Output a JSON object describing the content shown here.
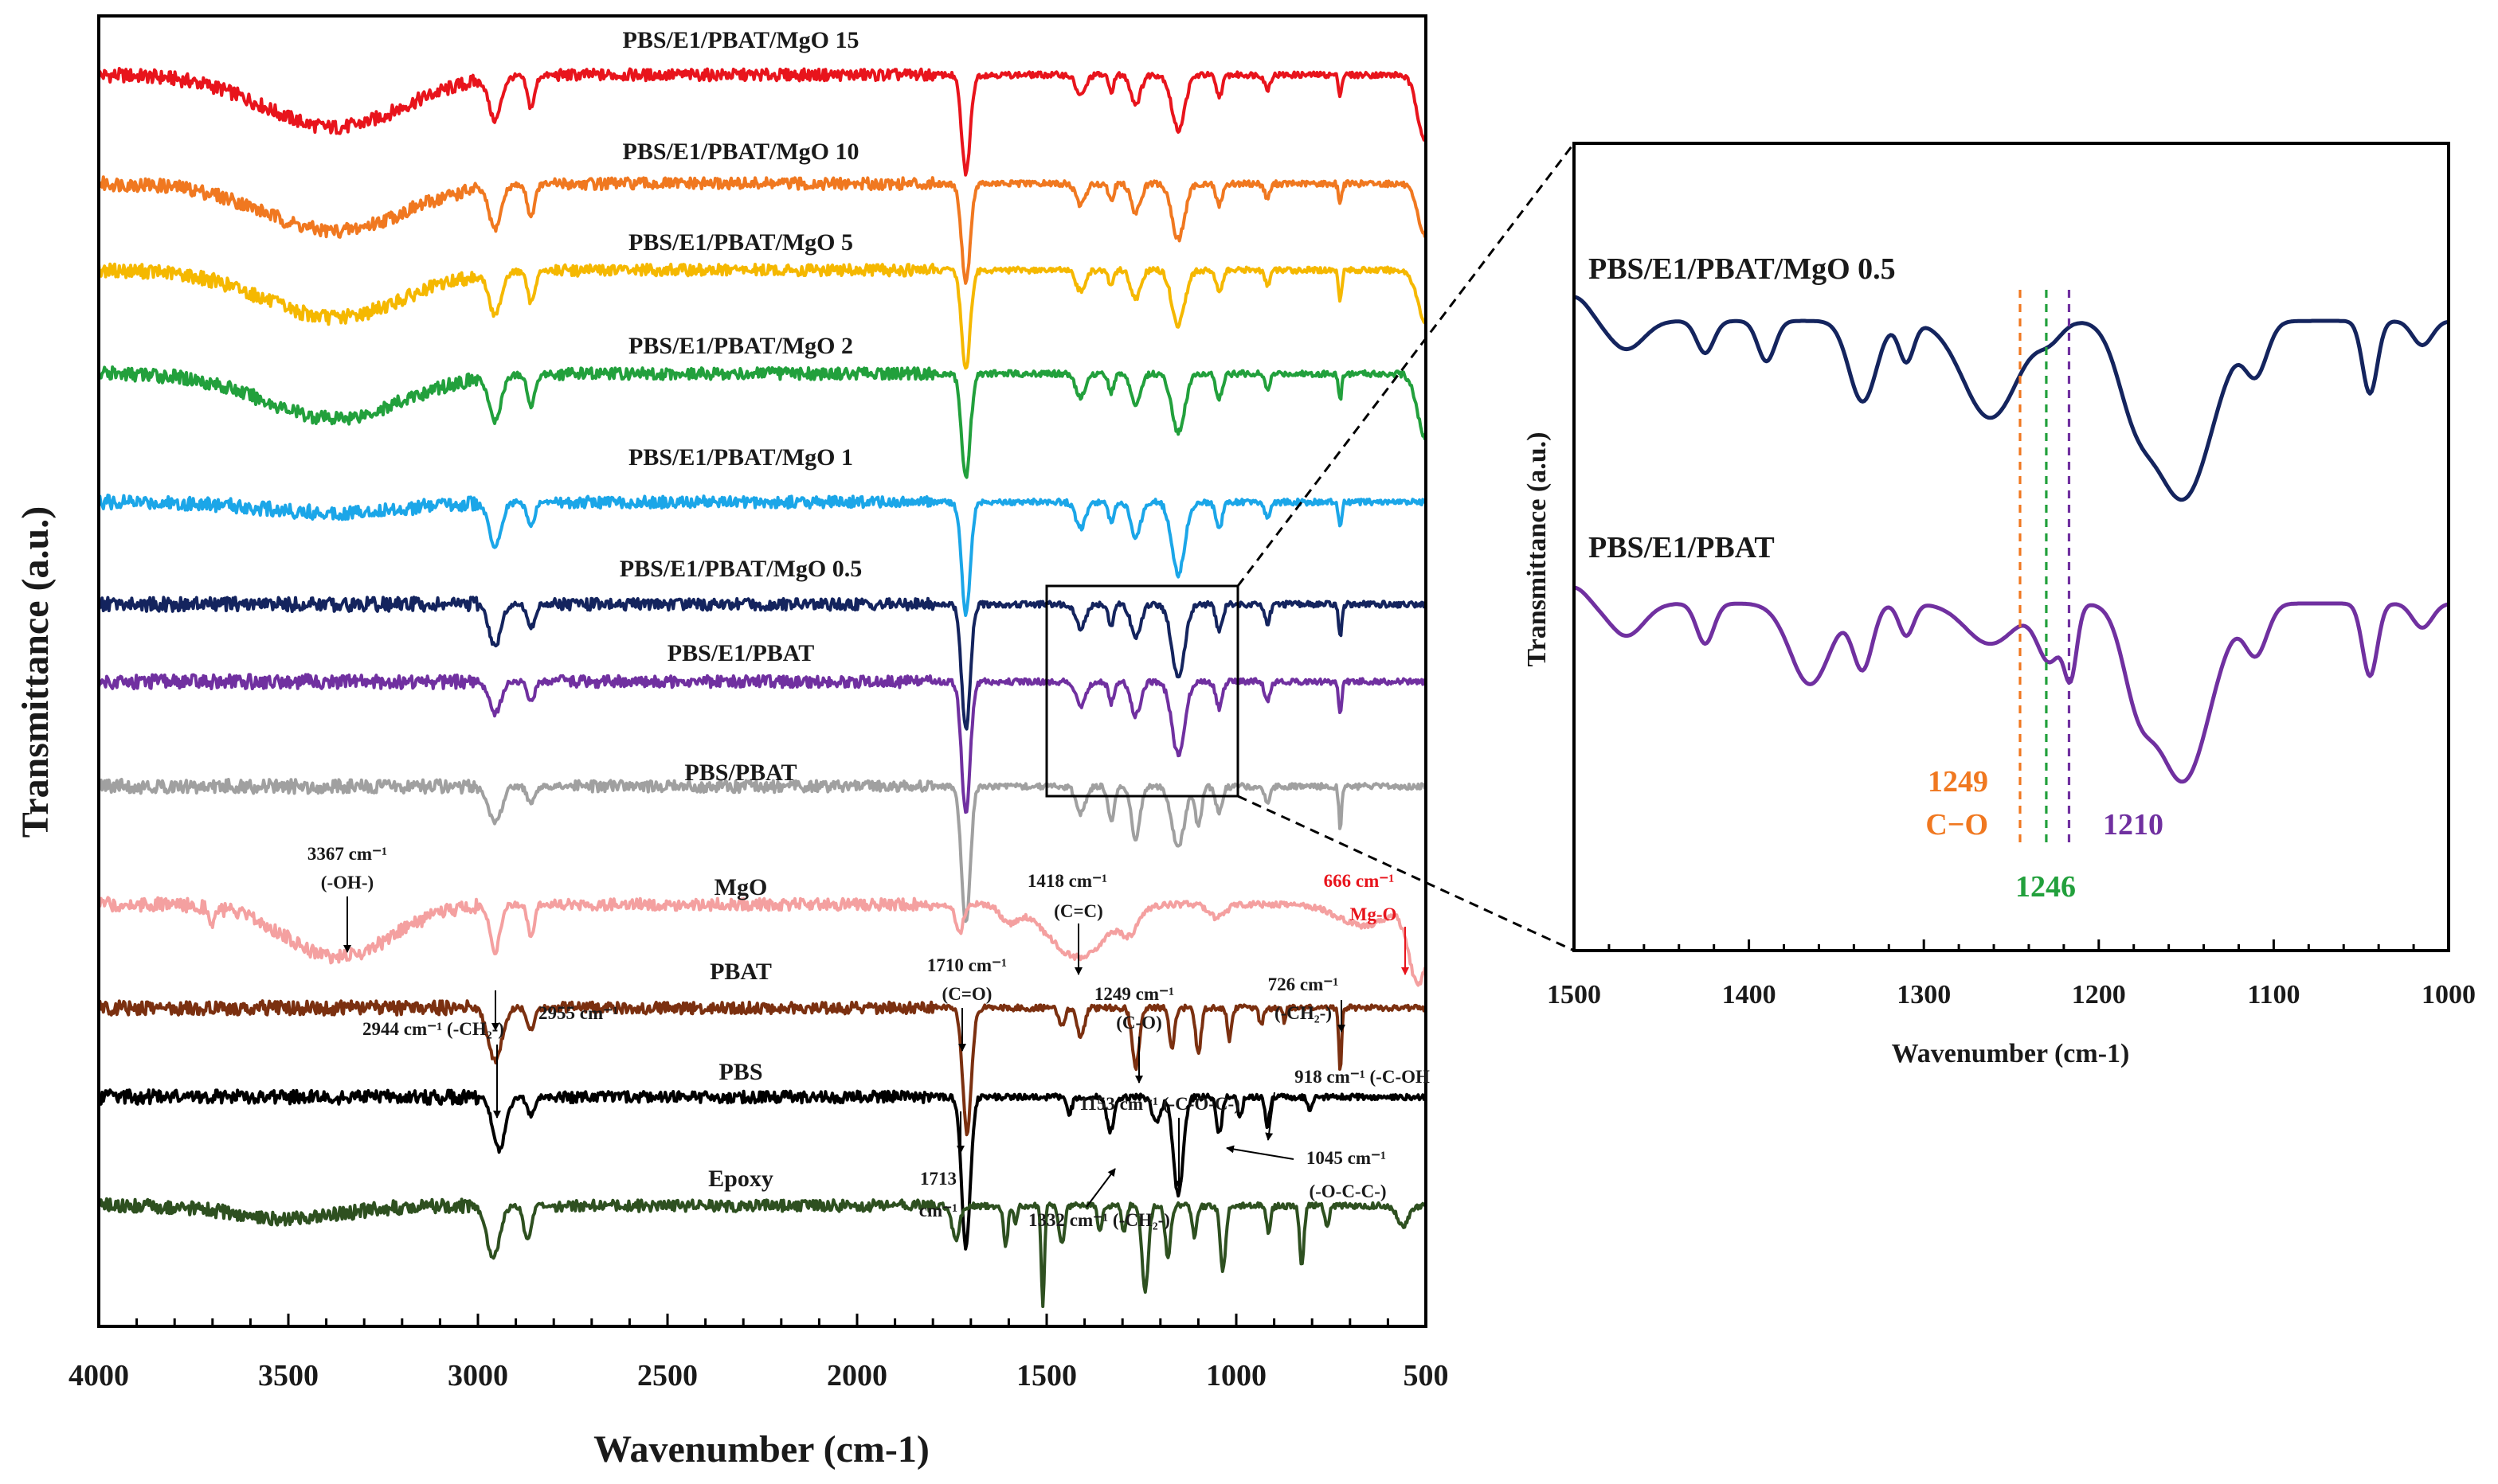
{
  "chart_data": [
    {
      "type": "line",
      "xlabel": "Wavenumber (cm-1)",
      "ylabel": "Transmittance (a.u.)",
      "xlim": [
        4000,
        500
      ],
      "ylim": [
        0,
        100
      ],
      "x_ticks": [
        "4000",
        "3500",
        "3000",
        "2500",
        "2000",
        "1500",
        "1000",
        "500"
      ],
      "grid": false,
      "legend": "none (labels above each curve)",
      "series": [
        {
          "name": "PBS/E1/PBAT/MgO 15",
          "color": "#e8141c",
          "baseline": 95.5,
          "peaks": [
            [
              3380,
              4,
              260
            ],
            [
              2955,
              3.2,
              22
            ],
            [
              2860,
              2.4,
              14
            ],
            [
              1713,
              7.5,
              16
            ],
            [
              1410,
              1.6,
              18
            ],
            [
              1330,
              1.2,
              10
            ],
            [
              1265,
              2.2,
              18
            ],
            [
              1153,
              4.2,
              24
            ],
            [
              1045,
              1.6,
              12
            ],
            [
              918,
              1.1,
              10
            ],
            [
              726,
              1.5,
              6
            ],
            [
              500,
              5,
              30
            ]
          ]
        },
        {
          "name": "PBS/E1/PBAT/MgO 10",
          "color": "#f07820",
          "baseline": 87.2,
          "peaks": [
            [
              3380,
              3.6,
              260
            ],
            [
              2955,
              3.2,
              22
            ],
            [
              2860,
              2.4,
              14
            ],
            [
              1713,
              7.5,
              16
            ],
            [
              1410,
              1.6,
              18
            ],
            [
              1330,
              1.2,
              10
            ],
            [
              1265,
              2.2,
              18
            ],
            [
              1153,
              4.2,
              24
            ],
            [
              1045,
              1.6,
              12
            ],
            [
              918,
              1.1,
              10
            ],
            [
              726,
              1.5,
              6
            ],
            [
              500,
              4,
              30
            ]
          ]
        },
        {
          "name": "PBS/E1/PBAT/MgO 5",
          "color": "#f5b800",
          "baseline": 80.6,
          "peaks": [
            [
              3380,
              3.6,
              260
            ],
            [
              2955,
              3.2,
              22
            ],
            [
              2860,
              2.4,
              14
            ],
            [
              1713,
              7.5,
              16
            ],
            [
              1410,
              1.6,
              18
            ],
            [
              1330,
              1.2,
              10
            ],
            [
              1265,
              2.2,
              18
            ],
            [
              1153,
              4.2,
              24
            ],
            [
              1045,
              1.6,
              12
            ],
            [
              918,
              1.1,
              10
            ],
            [
              726,
              2.2,
              6
            ],
            [
              500,
              4,
              30
            ]
          ]
        },
        {
          "name": "PBS/E1/PBAT/MgO 2",
          "color": "#22a03c",
          "baseline": 72.7,
          "peaks": [
            [
              3380,
              3.4,
              260
            ],
            [
              2955,
              3.4,
              22
            ],
            [
              2860,
              2.4,
              14
            ],
            [
              1713,
              8,
              16
            ],
            [
              1410,
              1.8,
              18
            ],
            [
              1330,
              1.4,
              10
            ],
            [
              1265,
              2.4,
              18
            ],
            [
              1153,
              4.5,
              24
            ],
            [
              1045,
              1.8,
              12
            ],
            [
              918,
              1.2,
              10
            ],
            [
              726,
              2,
              6
            ],
            [
              500,
              5,
              30
            ]
          ]
        },
        {
          "name": "PBS/E1/PBAT/MgO 1",
          "color": "#1ba6e8",
          "baseline": 62.9,
          "peaks": [
            [
              3380,
              0.8,
              260
            ],
            [
              2955,
              3.4,
              22
            ],
            [
              2860,
              1.8,
              14
            ],
            [
              1713,
              8.5,
              16
            ],
            [
              1410,
              2,
              18
            ],
            [
              1330,
              1.5,
              10
            ],
            [
              1265,
              2.8,
              18
            ],
            [
              1153,
              5.5,
              24
            ],
            [
              1045,
              2,
              12
            ],
            [
              918,
              1.2,
              10
            ],
            [
              726,
              2,
              6
            ]
          ]
        },
        {
          "name": "PBS/E1/PBAT/MgO 0.5",
          "color": "#14245e",
          "baseline": 55.1,
          "peaks": [
            [
              2955,
              3.2,
              22
            ],
            [
              2860,
              1.8,
              14
            ],
            [
              1713,
              9.5,
              16
            ],
            [
              1410,
              1.8,
              18
            ],
            [
              1330,
              1.6,
              10
            ],
            [
              1265,
              2.6,
              18
            ],
            [
              1153,
              5.5,
              24
            ],
            [
              1045,
              2,
              12
            ],
            [
              918,
              1.4,
              10
            ],
            [
              726,
              2.5,
              6
            ]
          ]
        },
        {
          "name": "PBS/E1/PBAT",
          "color": "#7030a0",
          "baseline": 49.2,
          "peaks": [
            [
              2955,
              2.4,
              22
            ],
            [
              2860,
              1.4,
              14
            ],
            [
              1713,
              10,
              16
            ],
            [
              1410,
              1.8,
              18
            ],
            [
              1330,
              1.6,
              10
            ],
            [
              1265,
              2.6,
              18
            ],
            [
              1153,
              5.5,
              24
            ],
            [
              1045,
              2,
              12
            ],
            [
              918,
              1.4,
              10
            ],
            [
              726,
              2.4,
              6
            ]
          ]
        },
        {
          "name": "PBS/PBAT",
          "color": "#a0a0a0",
          "baseline": 41.2,
          "peaks": [
            [
              2955,
              2.8,
              24
            ],
            [
              2860,
              1.4,
              14
            ],
            [
              1713,
              10.5,
              16
            ],
            [
              1410,
              2,
              18
            ],
            [
              1330,
              2.6,
              12
            ],
            [
              1265,
              4,
              16
            ],
            [
              1153,
              4.5,
              24
            ],
            [
              1100,
              3,
              12
            ],
            [
              1045,
              2,
              12
            ],
            [
              918,
              1.2,
              10
            ],
            [
              726,
              3.2,
              5
            ]
          ]
        },
        {
          "name": "MgO",
          "color": "#f4a0a0",
          "baseline": 32.2,
          "peaks": [
            [
              3700,
              1.5,
              8
            ],
            [
              3367,
              4,
              200
            ],
            [
              2955,
              3.6,
              18
            ],
            [
              2860,
              2.6,
              12
            ],
            [
              1730,
              2.2,
              14
            ],
            [
              1600,
              1.2,
              30
            ],
            [
              1418,
              4,
              110
            ],
            [
              1280,
              1.6,
              30
            ],
            [
              1050,
              1,
              30
            ],
            [
              666,
              1.6,
              90
            ],
            [
              520,
              6,
              35
            ]
          ]
        },
        {
          "name": "PBAT",
          "color": "#7b3010",
          "baseline": 24.3,
          "peaks": [
            [
              2955,
              4,
              26
            ],
            [
              2860,
              1.6,
              14
            ],
            [
              1710,
              9.5,
              16
            ],
            [
              1460,
              1.4,
              12
            ],
            [
              1410,
              2.2,
              14
            ],
            [
              1265,
              4.5,
              14
            ],
            [
              1170,
              3,
              10
            ],
            [
              1100,
              3.5,
              10
            ],
            [
              1018,
              2.4,
              8
            ],
            [
              934,
              1.4,
              8
            ],
            [
              873,
              1,
              6
            ],
            [
              726,
              5,
              5
            ]
          ]
        },
        {
          "name": "PBS",
          "color": "#000000",
          "baseline": 17.5,
          "peaks": [
            [
              2944,
              4,
              24
            ],
            [
              2860,
              1.4,
              14
            ],
            [
              1713,
              11.5,
              16
            ],
            [
              1440,
              1.2,
              10
            ],
            [
              1332,
              2.6,
              14
            ],
            [
              1210,
              2,
              16
            ],
            [
              1153,
              7.5,
              18
            ],
            [
              1045,
              2.8,
              10
            ],
            [
              990,
              1.6,
              8
            ],
            [
              918,
              2.2,
              8
            ],
            [
              805,
              1,
              8
            ]
          ]
        },
        {
          "name": "Epoxy",
          "color": "#2e5020",
          "baseline": 9.2,
          "peaks": [
            [
              3500,
              1,
              200
            ],
            [
              2960,
              4,
              24
            ],
            [
              2870,
              2.6,
              14
            ],
            [
              1740,
              2.5,
              14
            ],
            [
              1608,
              3,
              8
            ],
            [
              1582,
              1.5,
              6
            ],
            [
              1510,
              7.5,
              6
            ],
            [
              1460,
              3,
              10
            ],
            [
              1360,
              2,
              8
            ],
            [
              1296,
              2,
              8
            ],
            [
              1240,
              6.5,
              12
            ],
            [
              1180,
              4,
              10
            ],
            [
              1110,
              2.5,
              8
            ],
            [
              1035,
              5,
              10
            ],
            [
              915,
              2,
              8
            ],
            [
              827,
              4.5,
              8
            ],
            [
              760,
              1.5,
              8
            ],
            [
              560,
              1.5,
              20
            ]
          ]
        }
      ],
      "annotations": {
        "oh": [
          "3367 cm⁻¹",
          "(-OH-)"
        ],
        "ch_2955": "2955 cm⁻¹",
        "ch_2944": "2944 cm⁻¹ (-CH₂-)",
        "co_1710": [
          "1710 cm⁻¹",
          "(C=O)"
        ],
        "co_1713": [
          "1713",
          "cm⁻¹"
        ],
        "cc_1418": [
          "1418 cm⁻¹",
          "(C=C)"
        ],
        "co_1249": [
          "1249 cm⁻¹",
          "(C-O)"
        ],
        "ch_726": [
          "726 cm⁻¹",
          "(-CH₂-)"
        ],
        "coh_918": "918 cm⁻¹ (-C-OH",
        "coc_1153": "1153 cm⁻¹ (-C-O-C-)",
        "occ_1045": [
          "1045 cm⁻¹",
          "(-O-C-C-)"
        ],
        "ch_1332": "1332 cm⁻¹ (-CH₂-)",
        "mgo_666": [
          "666 cm⁻¹",
          "Mg-O"
        ]
      },
      "annotation_color_mgo": "#e8141c",
      "zoom_region": [
        1500,
        1000
      ]
    },
    {
      "type": "line",
      "xlabel": "Wavenumber (cm-1)",
      "ylabel": "Transmittance (a.u.)",
      "xlim": [
        1500,
        1000
      ],
      "ylim": [
        0,
        100
      ],
      "x_ticks": [
        "1500",
        "1400",
        "1300",
        "1200",
        "1100",
        "1000"
      ],
      "grid": false,
      "series": [
        {
          "name": "PBS/E1/PBAT/MgO 0.5",
          "color": "#14245e",
          "baseline": 78,
          "peaks": [
            [
              1500,
              -3,
              12
            ],
            [
              1470,
              3.5,
              14
            ],
            [
              1425,
              4,
              7
            ],
            [
              1390,
              5,
              7
            ],
            [
              1335,
              10,
              11
            ],
            [
              1310,
              5,
              6
            ],
            [
              1262,
              12,
              22
            ],
            [
              1228,
              2,
              10
            ],
            [
              1180,
              8,
              14
            ],
            [
              1152,
              22,
              24
            ],
            [
              1110,
              6,
              9
            ],
            [
              1045,
              9,
              6
            ],
            [
              1015,
              3,
              8
            ]
          ]
        },
        {
          "name": "PBS/E1/PBAT",
          "color": "#7030a0",
          "baseline": 43,
          "peaks": [
            [
              1500,
              -2,
              10
            ],
            [
              1470,
              4,
              14
            ],
            [
              1425,
              5,
              7
            ],
            [
              1365,
              10,
              16
            ],
            [
              1335,
              8,
              8
            ],
            [
              1310,
              4,
              6
            ],
            [
              1262,
              5,
              20
            ],
            [
              1228,
              7,
              10
            ],
            [
              1216,
              8,
              5
            ],
            [
              1178,
              9,
              12
            ],
            [
              1152,
              22,
              22
            ],
            [
              1110,
              6,
              9
            ],
            [
              1045,
              9,
              6
            ],
            [
              1015,
              3,
              8
            ]
          ]
        }
      ],
      "markers": [
        {
          "wavenumber": 1245,
          "color": "#f07820",
          "label": "1249",
          "sublabel": "C−O"
        },
        {
          "wavenumber": 1230,
          "color": "#22a03c",
          "label": "1246"
        },
        {
          "wavenumber": 1217,
          "color": "#7030a0",
          "label": "1210"
        }
      ]
    }
  ]
}
